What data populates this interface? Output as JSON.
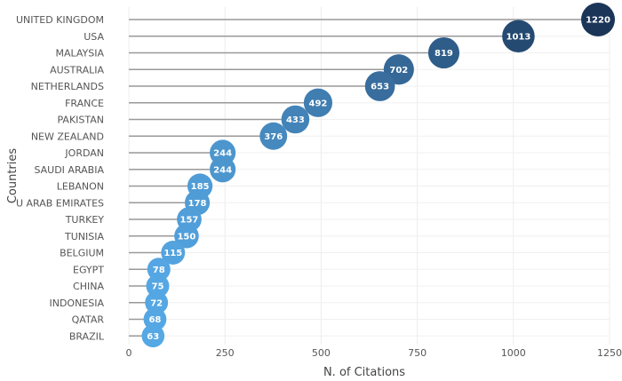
{
  "chart_data": {
    "type": "lollipop",
    "orientation": "horizontal",
    "xlabel": "N. of Citations",
    "ylabel": "Countries",
    "xlim": [
      0,
      1250
    ],
    "xticks": [
      0,
      250,
      500,
      750,
      1000,
      1250
    ],
    "grid": true,
    "legend": "none",
    "color_scale": [
      "#56a9e6",
      "#1b3558"
    ],
    "categories": [
      "UNITED KINGDOM",
      "USA",
      "MALAYSIA",
      "AUSTRALIA",
      "NETHERLANDS",
      "FRANCE",
      "PAKISTAN",
      "NEW ZEALAND",
      "JORDAN",
      "SAUDI ARABIA",
      "LEBANON",
      "U ARAB EMIRATES",
      "TURKEY",
      "TUNISIA",
      "BELGIUM",
      "EGYPT",
      "CHINA",
      "INDONESIA",
      "QATAR",
      "BRAZIL"
    ],
    "values": [
      1220,
      1013,
      819,
      702,
      653,
      492,
      433,
      376,
      244,
      244,
      185,
      178,
      157,
      150,
      115,
      78,
      75,
      72,
      68,
      63
    ]
  }
}
